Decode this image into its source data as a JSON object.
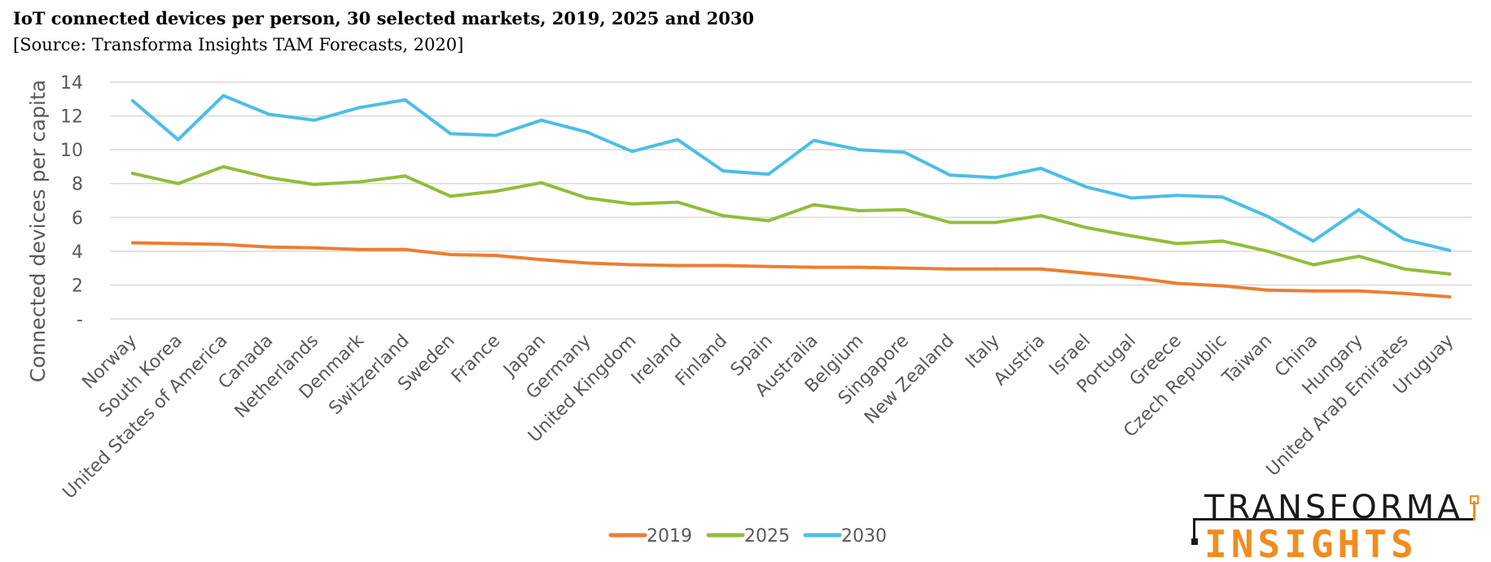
{
  "page": {
    "title": "IoT connected devices per person, 30 selected markets, 2019, 2025 and 2030",
    "source": "[Source: Transforma Insights TAM Forecasts, 2020]"
  },
  "logo": {
    "line1": "TRANSFORMA",
    "line2": "INSIGHTS",
    "color_dark": "#1a1a1a",
    "color_accent": "#f28c1e"
  },
  "chart_data": {
    "type": "line",
    "title": "IoT connected devices per person, 30 selected markets, 2019, 2025 and 2030",
    "subtitle": "[Source: Transforma Insights TAM Forecasts, 2020]",
    "xlabel": "",
    "ylabel": "Connected devices per capita",
    "ylim": [
      0,
      14
    ],
    "yticks": [
      {
        "value": 0,
        "label": "-"
      },
      {
        "value": 2,
        "label": "2"
      },
      {
        "value": 4,
        "label": "4"
      },
      {
        "value": 6,
        "label": "6"
      },
      {
        "value": 8,
        "label": "8"
      },
      {
        "value": 10,
        "label": "10"
      },
      {
        "value": 12,
        "label": "12"
      },
      {
        "value": 14,
        "label": "14"
      }
    ],
    "grid": true,
    "legend": "bottom-center",
    "categories": [
      "Norway",
      "South Korea",
      "United States of America",
      "Canada",
      "Netherlands",
      "Denmark",
      "Switzerland",
      "Sweden",
      "France",
      "Japan",
      "Germany",
      "United Kingdom",
      "Ireland",
      "Finland",
      "Spain",
      "Australia",
      "Belgium",
      "Singapore",
      "New Zealand",
      "Italy",
      "Austria",
      "Israel",
      "Portugal",
      "Greece",
      "Czech Republic",
      "Taiwan",
      "China",
      "Hungary",
      "United Arab Emirates",
      "Uruguay"
    ],
    "series": [
      {
        "name": "2019",
        "color": "#ed7d31",
        "values": [
          4.5,
          4.45,
          4.4,
          4.25,
          4.2,
          4.1,
          4.1,
          3.8,
          3.75,
          3.5,
          3.3,
          3.2,
          3.15,
          3.15,
          3.1,
          3.05,
          3.05,
          3.0,
          2.95,
          2.95,
          2.95,
          2.7,
          2.45,
          2.1,
          1.95,
          1.7,
          1.65,
          1.65,
          1.5,
          1.3
        ]
      },
      {
        "name": "2025",
        "color": "#92bd3a",
        "values": [
          8.6,
          8.0,
          9.0,
          8.35,
          7.95,
          8.1,
          8.45,
          7.25,
          7.55,
          8.05,
          7.15,
          6.8,
          6.9,
          6.1,
          5.8,
          6.75,
          6.4,
          6.45,
          5.7,
          5.7,
          6.1,
          5.4,
          4.9,
          4.45,
          4.6,
          4.0,
          3.2,
          3.7,
          2.95,
          2.65
        ]
      },
      {
        "name": "2030",
        "color": "#4dbde8",
        "values": [
          12.9,
          10.6,
          13.2,
          12.1,
          11.75,
          12.5,
          12.95,
          10.95,
          10.85,
          11.75,
          11.05,
          9.9,
          10.6,
          8.75,
          8.55,
          10.55,
          10.0,
          9.85,
          8.5,
          8.35,
          8.9,
          7.8,
          7.15,
          7.3,
          7.2,
          6.05,
          4.6,
          6.45,
          4.7,
          4.05
        ]
      }
    ]
  }
}
